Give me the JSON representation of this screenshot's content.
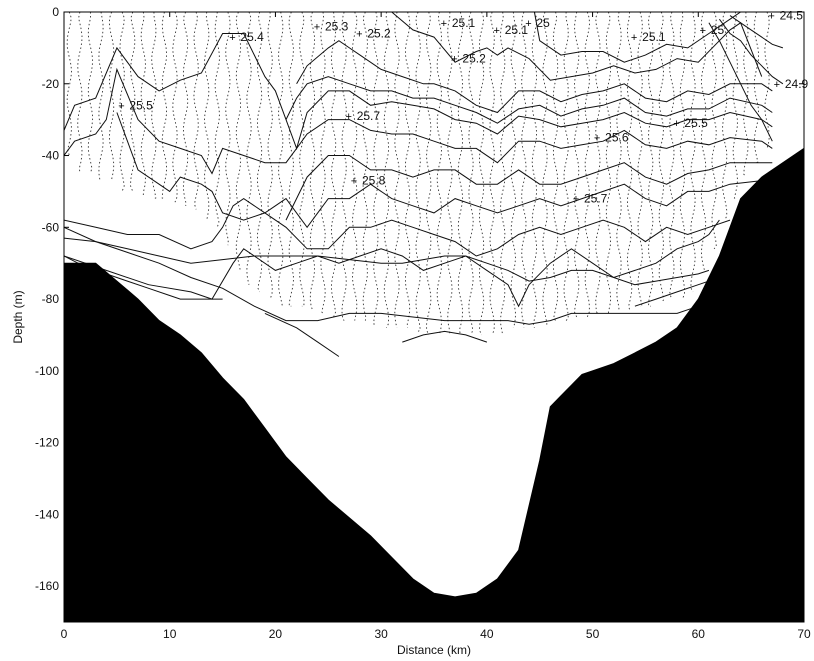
{
  "chart_data": {
    "type": "contour",
    "xlabel": "Distance (km)",
    "ylabel": "Depth (m)",
    "xlim": [
      0,
      70
    ],
    "ylim": [
      -170,
      0
    ],
    "xticks": [
      0,
      10,
      20,
      30,
      40,
      50,
      60,
      70
    ],
    "yticks": [
      0,
      -20,
      -40,
      -60,
      -80,
      -100,
      -120,
      -140,
      -160
    ],
    "grid": false,
    "bathymetry": {
      "x": [
        0,
        1,
        3,
        5,
        7,
        9,
        11,
        13,
        15,
        17,
        19,
        21,
        23,
        25,
        27,
        29,
        31,
        33,
        35,
        37,
        39,
        41,
        43,
        45,
        46,
        47,
        48,
        49,
        50,
        52,
        54,
        56,
        58,
        60,
        62,
        64,
        66,
        68,
        70
      ],
      "depth": [
        -70,
        -70,
        -70,
        -75,
        -80,
        -86,
        -90,
        -95,
        -102,
        -108,
        -116,
        -124,
        -130,
        -136,
        -141,
        -146,
        -152,
        -158,
        -162,
        -163,
        -162,
        -158,
        -150,
        -125,
        -110,
        -107,
        -104,
        -101,
        -100,
        -98,
        -95,
        -92,
        -88,
        -80,
        -68,
        -52,
        -46,
        -42,
        -38
      ]
    },
    "contours": [
      {
        "level": "25",
        "x": [
          44.5,
          45,
          47,
          49,
          51,
          53,
          55,
          57,
          59,
          61,
          63,
          64
        ],
        "depth": [
          0,
          -8,
          -12,
          -11,
          -11,
          -14,
          -12,
          -9,
          -10,
          -6,
          -2,
          0
        ]
      },
      {
        "level": "25.1",
        "x": [
          31,
          33,
          35,
          37,
          39,
          40,
          41,
          42,
          44,
          46,
          48,
          50,
          52,
          54,
          56,
          58,
          60,
          62,
          63,
          64,
          66
        ],
        "depth": [
          0,
          -5,
          -7,
          -14,
          -11,
          -10,
          -12,
          -10,
          -13,
          -19,
          -18,
          -17,
          -15,
          -17,
          -16,
          -13,
          -14,
          -8,
          -5,
          -3,
          -18
        ]
      },
      {
        "level": "25.2",
        "x": [
          22,
          23,
          25,
          26,
          27,
          28,
          30,
          32,
          34,
          35,
          37,
          39,
          41,
          43,
          45,
          47,
          49,
          51,
          53,
          55,
          57,
          59,
          61,
          63,
          66,
          67
        ],
        "depth": [
          -20,
          -15,
          -10,
          -8,
          -10,
          -12,
          -16,
          -18,
          -20,
          -20,
          -22,
          -26,
          -28,
          -22,
          -22,
          -25,
          -23,
          -22,
          -20,
          -24,
          -25,
          -22,
          -23,
          -20,
          -20,
          -22
        ]
      },
      {
        "level": "25.3",
        "x": [
          21,
          22,
          23,
          25,
          27,
          29,
          31,
          33,
          35,
          37,
          39,
          41,
          43,
          45,
          47,
          49,
          51,
          53,
          55,
          57,
          59,
          61,
          63,
          66,
          67
        ],
        "depth": [
          -30,
          -24,
          -20,
          -18,
          -20,
          -22,
          -22,
          -24,
          -24,
          -26,
          -28,
          -31,
          -27,
          -26,
          -29,
          -27,
          -26,
          -24,
          -28,
          -29,
          -27,
          -27,
          -24,
          -26,
          -28
        ]
      },
      {
        "level": "25.4",
        "x": [
          0,
          1,
          3,
          5,
          7,
          9,
          11,
          13,
          15,
          17,
          19,
          20,
          21,
          22,
          23,
          25,
          27,
          29,
          31,
          33,
          35,
          37,
          39,
          41,
          43,
          45,
          47,
          49,
          51,
          53,
          55,
          57,
          59,
          61,
          63,
          66,
          67
        ],
        "depth": [
          -33,
          -26,
          -24,
          -10,
          -18,
          -22,
          -19,
          -17,
          -6,
          -6,
          -18,
          -22,
          -30,
          -38,
          -28,
          -22,
          -22,
          -26,
          -25,
          -26,
          -27,
          -30,
          -31,
          -34,
          -29,
          -30,
          -32,
          -31,
          -30,
          -28,
          -31,
          -32,
          -30,
          -30,
          -28,
          -30,
          -32
        ]
      },
      {
        "level": "25.5",
        "x": [
          0,
          1,
          3,
          4,
          5,
          7,
          9,
          11,
          13,
          14,
          15,
          17,
          19,
          21,
          22,
          23,
          25,
          27,
          29,
          31,
          33,
          35,
          37,
          39,
          41,
          43,
          45,
          47,
          49,
          51,
          53,
          55,
          57,
          59,
          61,
          63,
          66,
          67
        ],
        "depth": [
          -40,
          -36,
          -34,
          -30,
          -16,
          -30,
          -36,
          -38,
          -40,
          -45,
          -38,
          -40,
          -42,
          -42,
          -38,
          -34,
          -30,
          -30,
          -33,
          -34,
          -34,
          -36,
          -38,
          -38,
          -42,
          -36,
          -36,
          -38,
          -37,
          -36,
          -33,
          -37,
          -38,
          -36,
          -37,
          -35,
          -36,
          -38
        ]
      },
      {
        "level": "25.6",
        "x": [
          21,
          23,
          25,
          27,
          29,
          31,
          33,
          35,
          37,
          39,
          41,
          43,
          45,
          47,
          49,
          51,
          53,
          55,
          57,
          59,
          61,
          63,
          66,
          67
        ],
        "depth": [
          -58,
          -46,
          -40,
          -40,
          -44,
          -44,
          -46,
          -44,
          -44,
          -48,
          -48,
          -44,
          -48,
          -48,
          -46,
          -44,
          -42,
          -46,
          -48,
          -45,
          -44,
          -42,
          -42,
          -42
        ]
      },
      {
        "level": "25.7",
        "x": [
          5,
          7,
          9,
          10,
          11,
          13,
          14,
          15,
          17,
          19,
          20,
          21,
          23,
          24,
          25,
          27,
          29,
          31,
          33,
          35,
          37,
          39,
          41,
          43,
          45,
          47,
          49,
          51,
          53,
          55,
          57,
          59,
          61,
          63,
          66
        ],
        "depth": [
          -28,
          -44,
          -48,
          -50,
          -46,
          -48,
          -50,
          -56,
          -58,
          -56,
          -54,
          -52,
          -60,
          -56,
          -52,
          -52,
          -48,
          -52,
          -54,
          -56,
          -52,
          -54,
          -56,
          -54,
          -52,
          -54,
          -52,
          -50,
          -48,
          -52,
          -54,
          -50,
          -50,
          -48,
          -47
        ]
      },
      {
        "level": "25.8",
        "x": [
          0,
          3,
          6,
          9,
          12,
          14,
          15,
          16,
          17,
          19,
          21,
          23,
          25,
          27,
          29,
          31,
          33,
          35,
          37,
          39,
          41,
          43,
          45,
          47,
          49,
          51,
          53,
          55,
          57,
          59,
          61,
          63
        ],
        "depth": [
          -58,
          -60,
          -62,
          -62,
          -66,
          -64,
          -60,
          -54,
          -52,
          -56,
          -60,
          -66,
          -66,
          -60,
          -60,
          -58,
          -60,
          -62,
          -64,
          -68,
          -66,
          -62,
          -60,
          -62,
          -60,
          -58,
          -60,
          -64,
          -60,
          -62,
          -60,
          -58
        ]
      },
      {
        "level": "",
        "x": [
          0,
          4,
          8,
          12,
          14,
          16,
          17,
          18,
          20,
          22,
          24,
          26,
          28,
          30,
          32,
          34,
          36,
          38,
          40,
          42,
          43,
          44,
          46,
          48,
          50,
          52,
          54,
          56,
          58,
          60,
          61,
          62
        ],
        "depth": [
          -68,
          -72,
          -76,
          -78,
          -80,
          -70,
          -66,
          -68,
          -72,
          -70,
          -68,
          -70,
          -68,
          -66,
          -68,
          -72,
          -70,
          -68,
          -72,
          -76,
          -82,
          -76,
          -70,
          -66,
          -70,
          -74,
          -72,
          -70,
          -66,
          -64,
          -62,
          -58
        ]
      },
      {
        "level": "",
        "x": [
          0,
          3,
          6,
          9,
          12,
          15,
          18,
          21,
          24,
          27,
          30,
          32,
          34,
          36,
          38,
          40,
          42,
          44,
          46,
          48,
          50,
          52,
          54,
          56,
          58,
          60,
          61
        ],
        "depth": [
          -63,
          -64,
          -66,
          -68,
          -70,
          -69,
          -68,
          -68,
          -68,
          -69,
          -70,
          -70,
          -69,
          -68,
          -68,
          -70,
          -72,
          -75,
          -74,
          -72,
          -72,
          -74,
          -76,
          -75,
          -74,
          -73,
          -72
        ]
      },
      {
        "level": "",
        "x": [
          0,
          2,
          4,
          6,
          8,
          10,
          11,
          12,
          14,
          15
        ],
        "depth": [
          -68,
          -71,
          -73,
          -75,
          -77,
          -79,
          -80,
          -80,
          -80,
          -80
        ]
      },
      {
        "level": "",
        "x": [
          0,
          3,
          6,
          9,
          12,
          15,
          18,
          21,
          24,
          27,
          30,
          33,
          36,
          39,
          42,
          44,
          46,
          48,
          50,
          52,
          54,
          56,
          58,
          60,
          62,
          63
        ],
        "depth": [
          -60,
          -64,
          -67,
          -70,
          -74,
          -77,
          -82,
          -86,
          -86,
          -84,
          -84,
          -85,
          -86,
          -86,
          -86,
          -87,
          -86,
          -84,
          -84,
          -84,
          -84,
          -84,
          -84,
          -82,
          -80,
          -78
        ]
      },
      {
        "level": "",
        "x": [
          19,
          22,
          24,
          26
        ],
        "depth": [
          -84,
          -88,
          -92,
          -96
        ]
      },
      {
        "level": "",
        "x": [
          32,
          34,
          36,
          38,
          40
        ],
        "depth": [
          -92,
          -90,
          -89,
          -90,
          -92
        ]
      },
      {
        "level": "",
        "x": [
          54,
          56,
          58,
          60,
          62
        ],
        "depth": [
          -82,
          -80,
          -78,
          -76,
          -74
        ]
      },
      {
        "level": "",
        "x": [
          62,
          63,
          64,
          65,
          66,
          67,
          68
        ],
        "depth": [
          -2,
          -6,
          -8,
          -12,
          -15,
          -18,
          -20
        ]
      },
      {
        "level": "",
        "x": [
          63,
          64,
          65,
          66,
          67,
          68
        ],
        "depth": [
          -1,
          -3,
          -5,
          -7,
          -9,
          -10
        ]
      },
      {
        "level": "",
        "x": [
          61,
          62,
          63,
          64,
          65,
          66,
          67
        ],
        "depth": [
          -3,
          -8,
          -14,
          -20,
          -26,
          -30,
          -36
        ]
      }
    ],
    "contour_labels": [
      {
        "text": "25.4",
        "x": 16.5,
        "y": -7
      },
      {
        "text": "25.3",
        "x": 24.5,
        "y": -4
      },
      {
        "text": "25.2",
        "x": 28.5,
        "y": -6
      },
      {
        "text": "25.1",
        "x": 36.5,
        "y": -3
      },
      {
        "text": "25",
        "x": 44.5,
        "y": -3
      },
      {
        "text": "25.1",
        "x": 41.5,
        "y": -5
      },
      {
        "text": "25.2",
        "x": 37.5,
        "y": -13
      },
      {
        "text": "25.1",
        "x": 54.5,
        "y": -7
      },
      {
        "text": "25",
        "x": 61,
        "y": -5
      },
      {
        "text": "24.5",
        "x": 67.5,
        "y": -1
      },
      {
        "text": "24.9",
        "x": 68,
        "y": -20
      },
      {
        "text": "25.5",
        "x": 6,
        "y": -26
      },
      {
        "text": "25.7",
        "x": 27.5,
        "y": -29
      },
      {
        "text": "25.6",
        "x": 51,
        "y": -35
      },
      {
        "text": "25.5",
        "x": 58.5,
        "y": -31
      },
      {
        "text": "25.8",
        "x": 28,
        "y": -47
      },
      {
        "text": "25.7",
        "x": 49,
        "y": -52
      }
    ],
    "casts": {
      "x": [
        0.5,
        1.5,
        2.5,
        3.5,
        4.5,
        5.5,
        6.5,
        7.5,
        8.5,
        9.5,
        10.5,
        11.5,
        12.5,
        13.5,
        14.5,
        15.5,
        16.5,
        17.5,
        18.5,
        19.5,
        20.5,
        21.5,
        22.5,
        23.5,
        24.5,
        25.5,
        26.5,
        27.5,
        28.5,
        29.5,
        30.5,
        31.5,
        32.5,
        33.5,
        34.5,
        35.5,
        36.5,
        37.5,
        38.5,
        39.5,
        40.5,
        41.5,
        42.5,
        43.5,
        44.5,
        45.5,
        46.5,
        47.5,
        48.5,
        49.5,
        50.5,
        51.5,
        52.5,
        53.5,
        54.5,
        55.5,
        56.5,
        57.5,
        58.5,
        59.5,
        60.5,
        61.5,
        62.5,
        63.5,
        64.5,
        65.5,
        66.5
      ],
      "bottom": [
        -40,
        -45,
        -45,
        -47,
        -47,
        -50,
        -50,
        -51,
        -52,
        -52,
        -53,
        -54,
        -55,
        -58,
        -60,
        -65,
        -72,
        -76,
        -78,
        -80,
        -82,
        -82,
        -82,
        -83,
        -84,
        -85,
        -86,
        -86,
        -86,
        -87,
        -88,
        -88,
        -88,
        -89,
        -90,
        -90,
        -90,
        -90,
        -90,
        -90,
        -90,
        -90,
        -88,
        -88,
        -88,
        -87,
        -86,
        -86,
        -85,
        -85,
        -84,
        -84,
        -83,
        -83,
        -82,
        -82,
        -81,
        -80,
        -80,
        -78,
        -72,
        -66,
        -58,
        -52,
        -46,
        -42,
        -38
      ]
    }
  }
}
